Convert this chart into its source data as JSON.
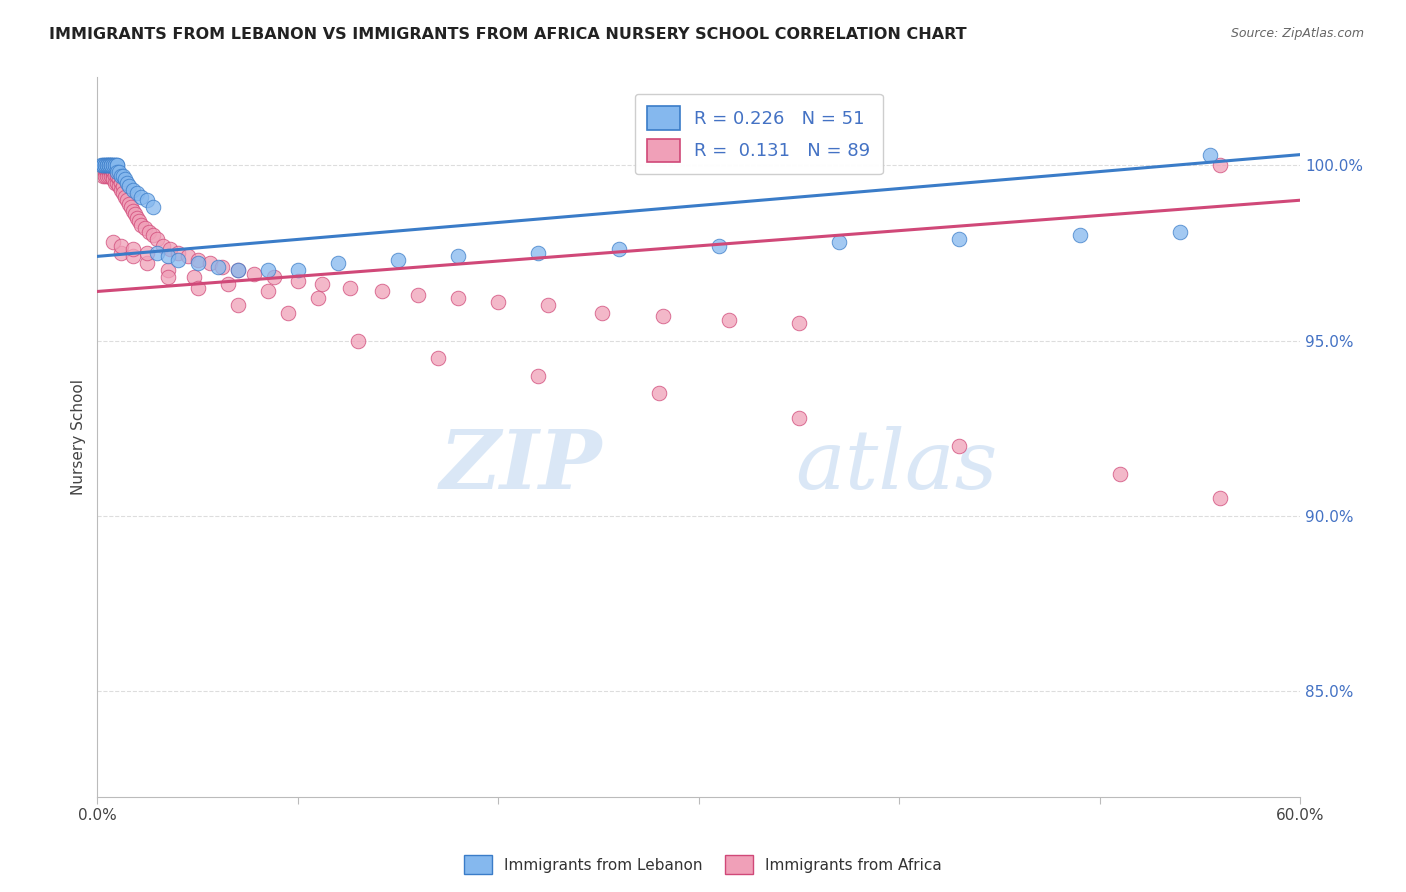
{
  "title": "IMMIGRANTS FROM LEBANON VS IMMIGRANTS FROM AFRICA NURSERY SCHOOL CORRELATION CHART",
  "source": "Source: ZipAtlas.com",
  "ylabel": "Nursery School",
  "ytick_labels": [
    "100.0%",
    "95.0%",
    "90.0%",
    "85.0%"
  ],
  "ytick_values": [
    1.0,
    0.95,
    0.9,
    0.85
  ],
  "xlim": [
    0.0,
    0.6
  ],
  "ylim": [
    0.82,
    1.025
  ],
  "legend_label1": "Immigrants from Lebanon",
  "legend_label2": "Immigrants from Africa",
  "R_lebanon": 0.226,
  "N_lebanon": 51,
  "R_africa": 0.131,
  "N_africa": 89,
  "color_lebanon": "#85B8EE",
  "color_africa": "#F0A0B8",
  "line_color_lebanon": "#3A7CC8",
  "line_color_africa": "#D04878",
  "lebanon_x": [
    0.002,
    0.003,
    0.003,
    0.004,
    0.004,
    0.005,
    0.005,
    0.005,
    0.006,
    0.006,
    0.006,
    0.007,
    0.007,
    0.007,
    0.008,
    0.008,
    0.009,
    0.009,
    0.01,
    0.01,
    0.01,
    0.011,
    0.012,
    0.013,
    0.014,
    0.015,
    0.016,
    0.018,
    0.02,
    0.022,
    0.025,
    0.028,
    0.03,
    0.035,
    0.04,
    0.05,
    0.06,
    0.07,
    0.085,
    0.1,
    0.12,
    0.15,
    0.18,
    0.22,
    0.26,
    0.31,
    0.37,
    0.43,
    0.49,
    0.54,
    0.555
  ],
  "lebanon_y": [
    1.0,
    1.0,
    1.0,
    1.0,
    1.0,
    1.0,
    1.0,
    1.0,
    1.0,
    1.0,
    1.0,
    1.0,
    1.0,
    1.0,
    1.0,
    1.0,
    1.0,
    1.0,
    1.0,
    1.0,
    0.998,
    0.998,
    0.997,
    0.997,
    0.996,
    0.995,
    0.994,
    0.993,
    0.992,
    0.991,
    0.99,
    0.988,
    0.975,
    0.974,
    0.973,
    0.972,
    0.971,
    0.97,
    0.97,
    0.97,
    0.972,
    0.973,
    0.974,
    0.975,
    0.976,
    0.977,
    0.978,
    0.979,
    0.98,
    0.981,
    1.003
  ],
  "africa_x": [
    0.002,
    0.003,
    0.003,
    0.004,
    0.004,
    0.004,
    0.005,
    0.005,
    0.005,
    0.006,
    0.006,
    0.006,
    0.007,
    0.007,
    0.007,
    0.008,
    0.008,
    0.008,
    0.009,
    0.009,
    0.01,
    0.01,
    0.01,
    0.011,
    0.011,
    0.012,
    0.012,
    0.013,
    0.013,
    0.014,
    0.015,
    0.016,
    0.017,
    0.018,
    0.019,
    0.02,
    0.021,
    0.022,
    0.024,
    0.026,
    0.028,
    0.03,
    0.033,
    0.036,
    0.04,
    0.045,
    0.05,
    0.056,
    0.062,
    0.07,
    0.078,
    0.088,
    0.1,
    0.112,
    0.126,
    0.142,
    0.16,
    0.18,
    0.2,
    0.225,
    0.252,
    0.282,
    0.315,
    0.35,
    0.012,
    0.018,
    0.025,
    0.035,
    0.048,
    0.065,
    0.085,
    0.11,
    0.008,
    0.012,
    0.018,
    0.025,
    0.035,
    0.05,
    0.07,
    0.095,
    0.13,
    0.17,
    0.22,
    0.28,
    0.35,
    0.43,
    0.51,
    0.56,
    0.56
  ],
  "africa_y": [
    0.998,
    0.997,
    0.999,
    0.998,
    0.997,
    0.999,
    0.998,
    0.997,
    0.999,
    0.998,
    0.997,
    0.999,
    0.998,
    0.997,
    0.999,
    0.997,
    0.998,
    0.996,
    0.997,
    0.995,
    0.997,
    0.995,
    0.997,
    0.996,
    0.994,
    0.995,
    0.993,
    0.994,
    0.992,
    0.991,
    0.99,
    0.989,
    0.988,
    0.987,
    0.986,
    0.985,
    0.984,
    0.983,
    0.982,
    0.981,
    0.98,
    0.979,
    0.977,
    0.976,
    0.975,
    0.974,
    0.973,
    0.972,
    0.971,
    0.97,
    0.969,
    0.968,
    0.967,
    0.966,
    0.965,
    0.964,
    0.963,
    0.962,
    0.961,
    0.96,
    0.958,
    0.957,
    0.956,
    0.955,
    0.975,
    0.974,
    0.972,
    0.97,
    0.968,
    0.966,
    0.964,
    0.962,
    0.978,
    0.977,
    0.976,
    0.975,
    0.968,
    0.965,
    0.96,
    0.958,
    0.95,
    0.945,
    0.94,
    0.935,
    0.928,
    0.92,
    0.912,
    0.905,
    1.0
  ],
  "watermark_zip": "ZIP",
  "watermark_atlas": "atlas",
  "background_color": "#FFFFFF",
  "grid_color": "#DDDDDD"
}
